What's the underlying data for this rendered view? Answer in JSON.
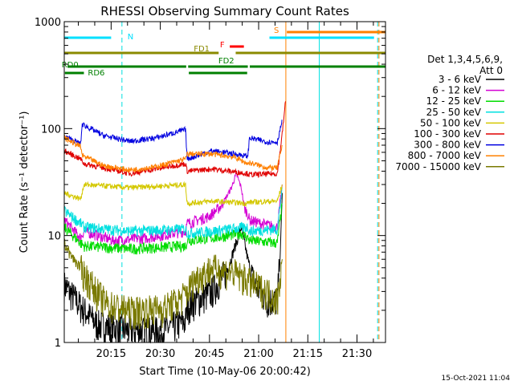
{
  "chart_data": {
    "type": "line",
    "title": "RHESSI Observing Summary Count Rates",
    "xlabel": "Start Time (10-May-06 20:00:42)",
    "ylabel": "Count Rate (s⁻¹ detector⁻¹)",
    "yscale": "log",
    "ylim": [
      1,
      1000
    ],
    "xlim_minutes": [
      0,
      98
    ],
    "x_tick_labels": [
      "20:15",
      "20:30",
      "20:45",
      "21:00",
      "21:15",
      "21:30"
    ],
    "x_tick_minutes": [
      14.3,
      29.3,
      44.3,
      59.3,
      74.3,
      89.3
    ],
    "y_tick_labels": [
      "1",
      "10",
      "100",
      "1000"
    ],
    "y_tick_values": [
      1,
      10,
      100,
      1000
    ],
    "timestamp": "15-Oct-2021 11:04",
    "legend_title_lines": [
      "Det 1,3,4,5,6,9,",
      "Att 0"
    ],
    "legend_position": "right",
    "series": [
      {
        "name": "3 - 6 keV",
        "color": "#000000",
        "t": [
          0,
          5,
          10,
          20,
          30,
          37,
          37.5,
          45,
          50,
          54,
          56,
          58,
          62,
          65,
          66,
          66.5
        ],
        "v": [
          3.5,
          2.2,
          1.5,
          1.3,
          1.3,
          1.6,
          2.2,
          3,
          5,
          12,
          6,
          3.5,
          2.5,
          2.5,
          8,
          25
        ]
      },
      {
        "name": "6 - 12 keV",
        "color": "#d400d4",
        "t": [
          0,
          5,
          6,
          15,
          25,
          37,
          37.5,
          44,
          48,
          51,
          52.5,
          54,
          55,
          56,
          56.5,
          60,
          65,
          66.5
        ],
        "v": [
          14,
          9.5,
          11,
          9,
          9.5,
          11,
          13,
          15,
          19,
          28,
          38,
          28,
          18,
          16,
          14,
          13,
          12,
          30
        ]
      },
      {
        "name": "12 - 25 keV",
        "color": "#00dc00",
        "t": [
          0,
          5,
          6,
          20,
          37,
          37.5,
          45,
          50,
          54,
          56,
          56.5,
          65,
          66.5
        ],
        "v": [
          12,
          8.5,
          8,
          7.5,
          8,
          9,
          9.5,
          10,
          10.5,
          9.5,
          9,
          8.5,
          20
        ]
      },
      {
        "name": "25 - 50 keV",
        "color": "#00e0e0",
        "t": [
          0,
          5,
          6,
          20,
          37,
          37.5,
          45,
          56,
          56.5,
          65,
          66.5
        ],
        "v": [
          17,
          13,
          12,
          11,
          11.5,
          10.5,
          11,
          12,
          11,
          11.5,
          28
        ]
      },
      {
        "name": "50 - 100 keV",
        "color": "#d4c800",
        "t": [
          0,
          5,
          6,
          20,
          37,
          37.5,
          45,
          56,
          56.5,
          65,
          66.5
        ],
        "v": [
          25,
          22,
          30,
          28,
          30,
          20,
          21,
          20,
          20.5,
          21,
          30
        ]
      },
      {
        "name": "100 - 300 keV",
        "color": "#e00000",
        "t": [
          0,
          5,
          6,
          12,
          20,
          28,
          37,
          37.5,
          45,
          56,
          56.5,
          65,
          66.5,
          67.5
        ],
        "v": [
          62,
          52,
          47,
          43,
          38,
          42,
          47,
          40,
          42,
          38,
          37,
          38,
          90,
          180
        ]
      },
      {
        "name": "300 - 800 keV",
        "color": "#0000e0",
        "t": [
          0,
          5,
          5.5,
          12,
          20,
          28,
          37,
          37.5,
          45,
          52,
          56,
          56.5,
          62,
          65,
          66.5
        ],
        "v": [
          85,
          72,
          110,
          86,
          76,
          82,
          98,
          52,
          62,
          58,
          55,
          82,
          75,
          75,
          120
        ]
      },
      {
        "name": "800 - 7000 keV",
        "color": "#ff8000",
        "t": [
          0,
          5,
          5.5,
          12,
          20,
          28,
          37,
          37.5,
          45,
          52,
          56,
          56.5,
          62,
          65,
          66.5
        ],
        "v": [
          82,
          68,
          56,
          45,
          41,
          44,
          52,
          58,
          58,
          54,
          47,
          48,
          43,
          43,
          70
        ]
      },
      {
        "name": "7000 - 15000 keV",
        "color": "#7a7a00",
        "t": [
          0,
          2,
          5,
          7,
          10,
          13,
          20,
          30,
          35,
          37.5,
          40,
          45,
          52,
          55,
          58,
          62,
          65,
          66.5
        ],
        "v": [
          8.5,
          6.5,
          5,
          4,
          3,
          2.3,
          2,
          2.1,
          2.5,
          3,
          4,
          5,
          4.5,
          4,
          3.5,
          3,
          2.5,
          6
        ]
      }
    ],
    "state_bars": [
      {
        "label": "N",
        "color": "#00e0ff",
        "segments": [
          [
            0,
            14.3
          ],
          [
            62.6,
            77.8
          ],
          [
            77.8,
            94.5
          ]
        ],
        "show_label": true,
        "level": 1
      },
      {
        "label": "S",
        "color": "#ff8000",
        "segments": [
          [
            67.9,
            98
          ]
        ],
        "show_label": true,
        "level": 0.5
      },
      {
        "label": "F",
        "color": "#ff0000",
        "segments": [
          [
            50.5,
            54.8
          ]
        ],
        "show_label": true,
        "level": 3
      },
      {
        "label": "FD1",
        "color": "#8a8a00",
        "segments": [
          [
            0,
            47.1
          ],
          [
            52.3,
            98
          ]
        ],
        "show_label": true,
        "level": 4
      },
      {
        "label": "FD2",
        "color": "#008000",
        "segments": [
          [
            1,
            37.2
          ],
          [
            37.8,
            56
          ],
          [
            56.6,
            98
          ]
        ],
        "show_label": true,
        "level": 5
      },
      {
        "label": "RD0",
        "color": "#008000",
        "segments": [
          [
            2.6,
            34.8
          ]
        ],
        "show_label": true,
        "level": 5
      },
      {
        "label": "RD6",
        "color": "#008000",
        "segments": [
          [
            0.2,
            6
          ],
          [
            38,
            55.8
          ]
        ],
        "show_label": true,
        "level": 6
      }
    ],
    "vertical_markers": [
      {
        "t": 0,
        "color": "#00e0e0",
        "style": "solid"
      },
      {
        "t": 17.6,
        "color": "#00e0e0",
        "style": "dashed"
      },
      {
        "t": 67.6,
        "color": "#ff8000",
        "style": "solid"
      },
      {
        "t": 77.8,
        "color": "#00e0e0",
        "style": "solid"
      },
      {
        "t": 95.6,
        "color": "#00e0e0",
        "style": "dashed"
      },
      {
        "t": 96.0,
        "color": "#ff8000",
        "style": "dashed"
      }
    ]
  }
}
